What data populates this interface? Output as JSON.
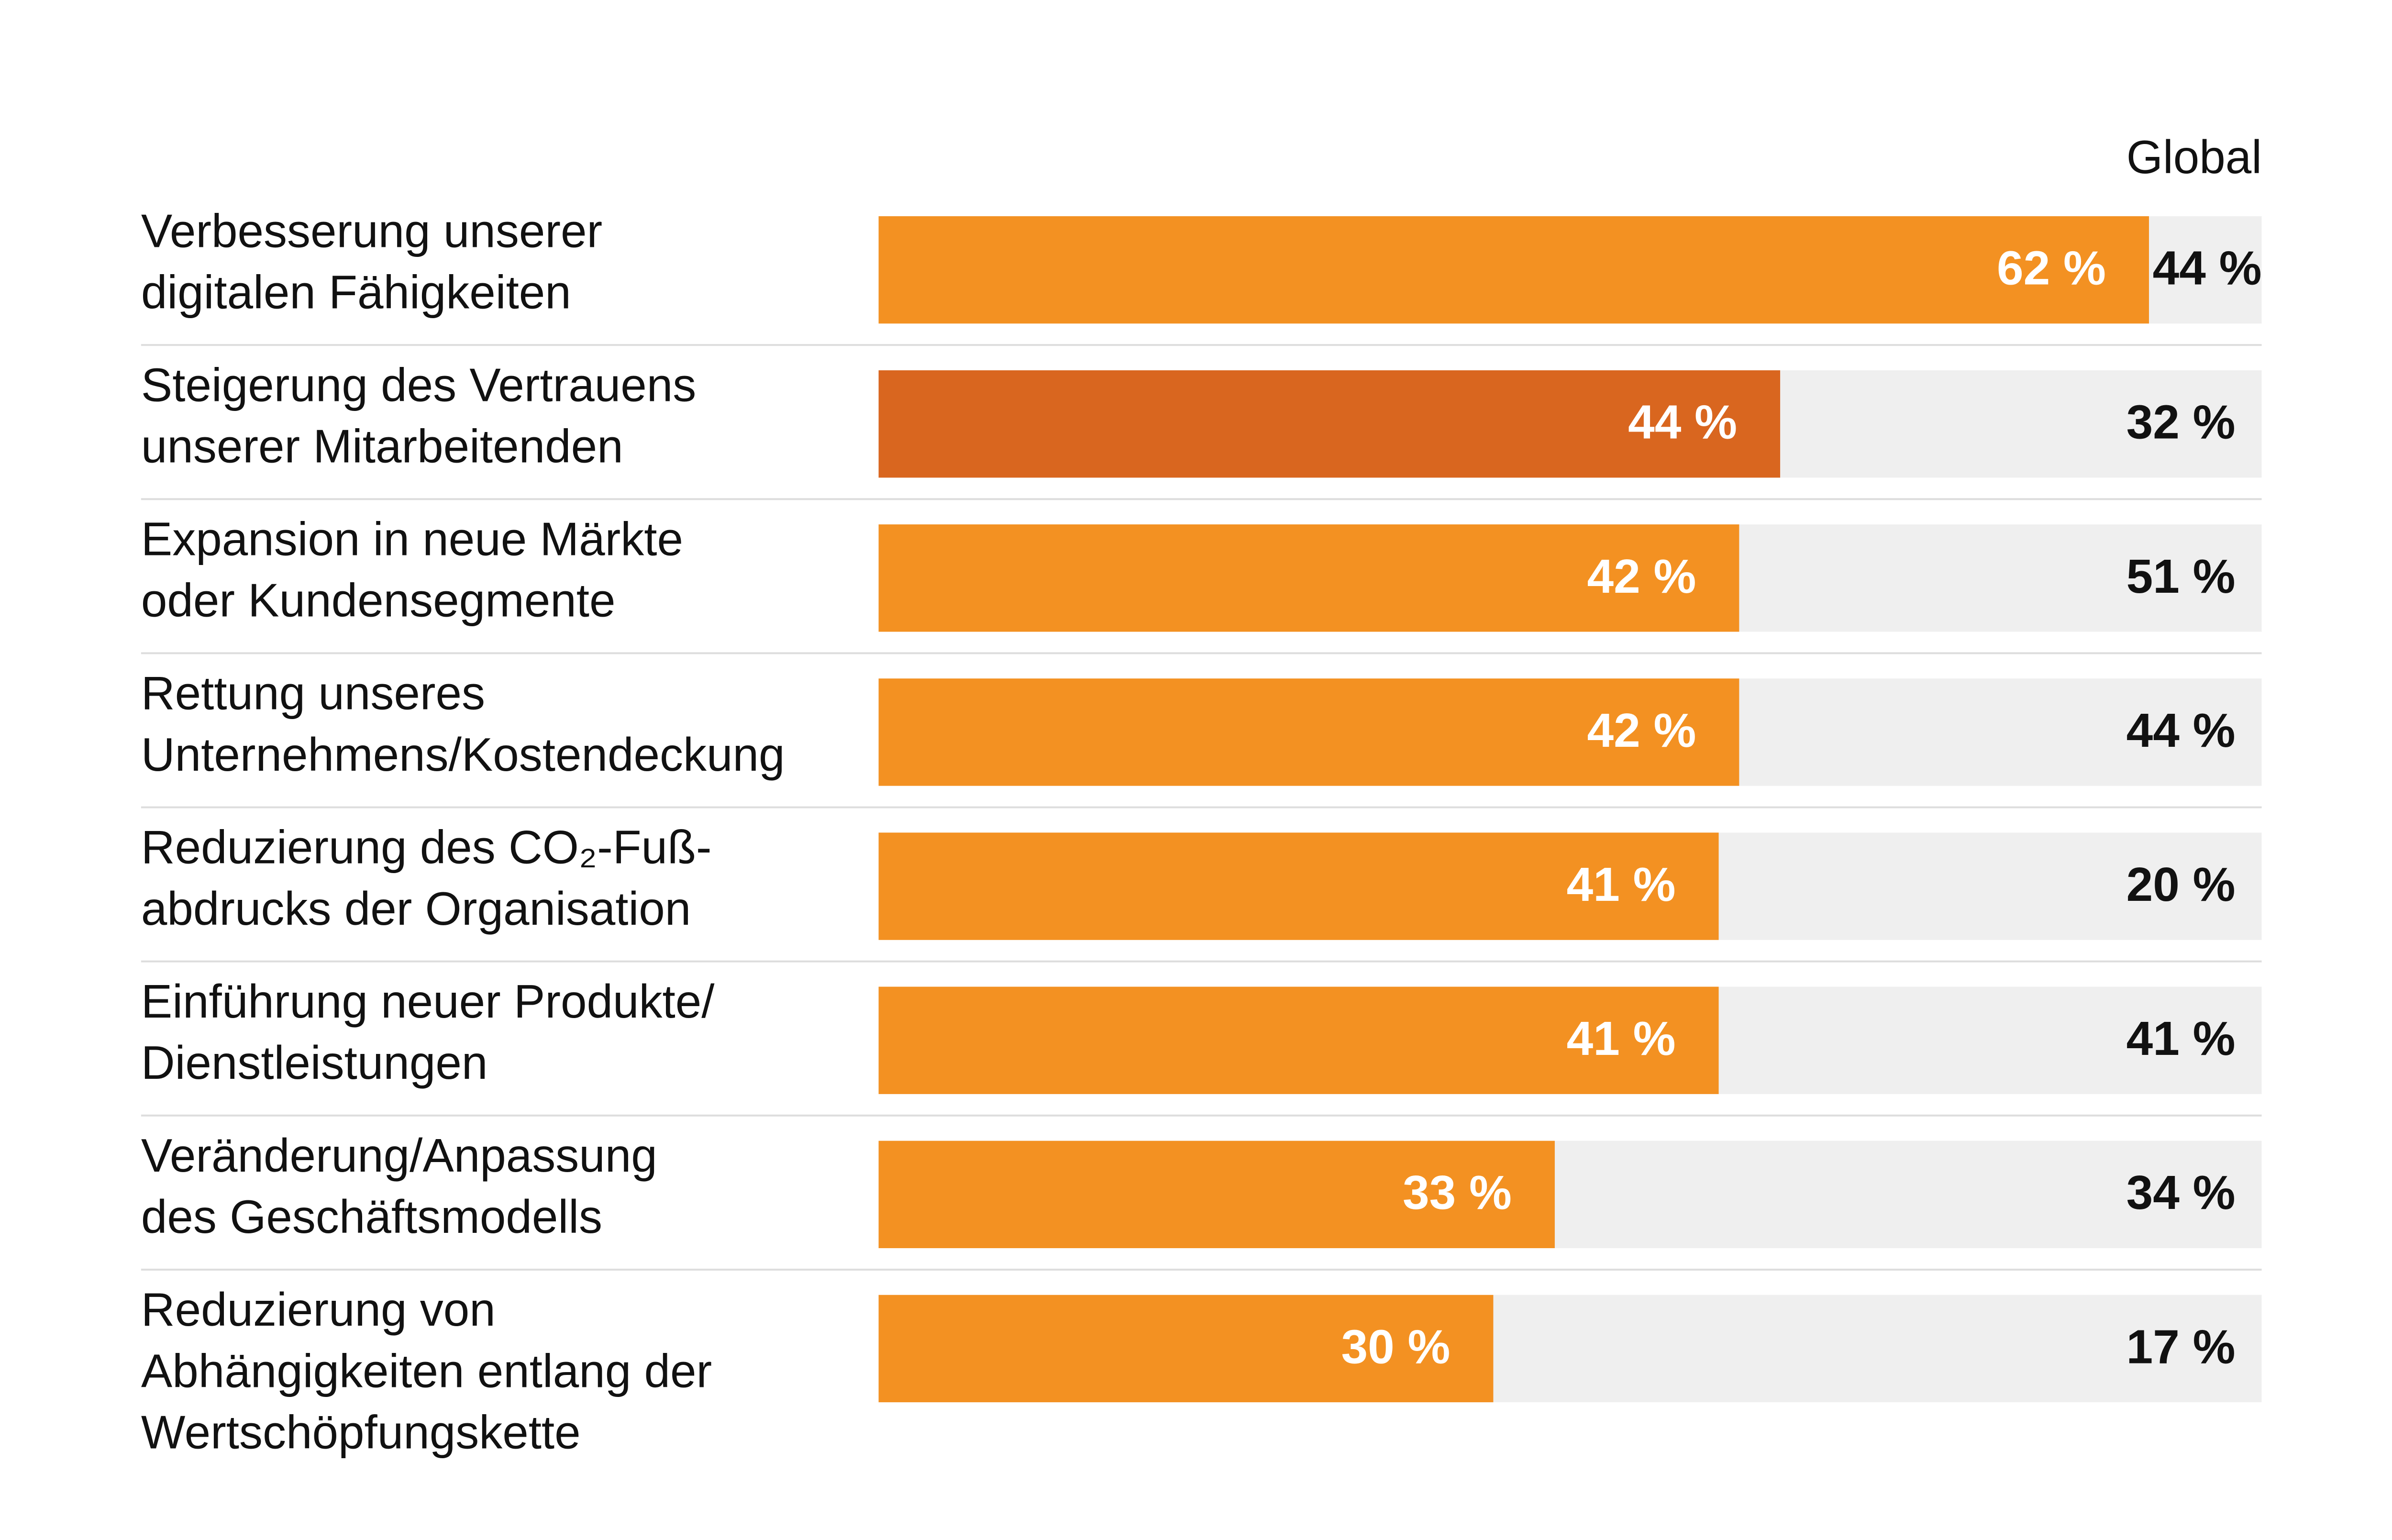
{
  "chart_data": {
    "type": "bar",
    "orientation": "horizontal",
    "categories": [
      [
        "Verbesserung unserer",
        "digitalen Fähigkeiten"
      ],
      [
        "Steigerung des Vertrauens",
        "unserer Mitarbeitenden"
      ],
      [
        "Expansion in neue Märkte",
        "oder Kundensegmente"
      ],
      [
        "Rettung unseres",
        "Unternehmens/Kostendeckung"
      ],
      [
        "Reduzierung des CO₂-Fuß-",
        "abdrucks der Organisation"
      ],
      [
        "Einführung neuer Produkte/",
        "Dienstleistungen"
      ],
      [
        "Veränderung/Anpassung",
        "des Geschäftsmodells"
      ],
      [
        "Reduzierung von",
        "Abhängigkeiten entlang der",
        "Wertschöpfungskette"
      ]
    ],
    "values": [
      62,
      44,
      42,
      42,
      41,
      41,
      33,
      30
    ],
    "value_labels": [
      "62 %",
      "44 %",
      "42 %",
      "42 %",
      "41 %",
      "41 %",
      "33 %",
      "30 %"
    ],
    "colors": [
      "#f39122",
      "#d9661f",
      "#f39122",
      "#f39122",
      "#f39122",
      "#f39122",
      "#f39122",
      "#f39122"
    ],
    "track_color": "#efefef",
    "xlim": [
      0,
      67.5
    ],
    "global": {
      "name": "Global",
      "values": [
        44,
        32,
        51,
        44,
        20,
        41,
        34,
        17
      ],
      "value_labels": [
        "44 %",
        "32 %",
        "51 %",
        "44 %",
        "20 %",
        "41 %",
        "34 %",
        "17 %"
      ]
    }
  }
}
